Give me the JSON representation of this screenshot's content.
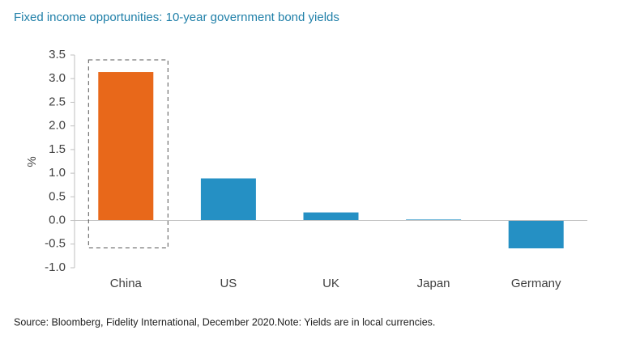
{
  "chart_data": {
    "type": "bar",
    "title": "Fixed income opportunities: 10-year government bond yields",
    "y_label": "%",
    "categories": [
      "China",
      "US",
      "UK",
      "Japan",
      "Germany"
    ],
    "values": [
      3.14,
      0.89,
      0.17,
      0.02,
      -0.59
    ],
    "colors": [
      "#e8681a",
      "#2590c4",
      "#2590c4",
      "#2590c4",
      "#2590c4"
    ],
    "ylim": [
      -1.0,
      3.5
    ],
    "yticks": [
      {
        "value": -1.0,
        "label": "-1.0"
      },
      -0.5,
      {
        "value": 0,
        "label": "0.0"
      },
      0.5,
      {
        "value": 1.0,
        "label": "1.0"
      },
      1.5,
      {
        "value": 2.0,
        "label": "2.0"
      },
      2.5,
      {
        "value": 3.0,
        "label": "3.0"
      },
      3.5
    ],
    "grid": false,
    "source": "Source: Bloomberg, Fidelity International, December 2020.Note: Yields are in local currencies."
  }
}
